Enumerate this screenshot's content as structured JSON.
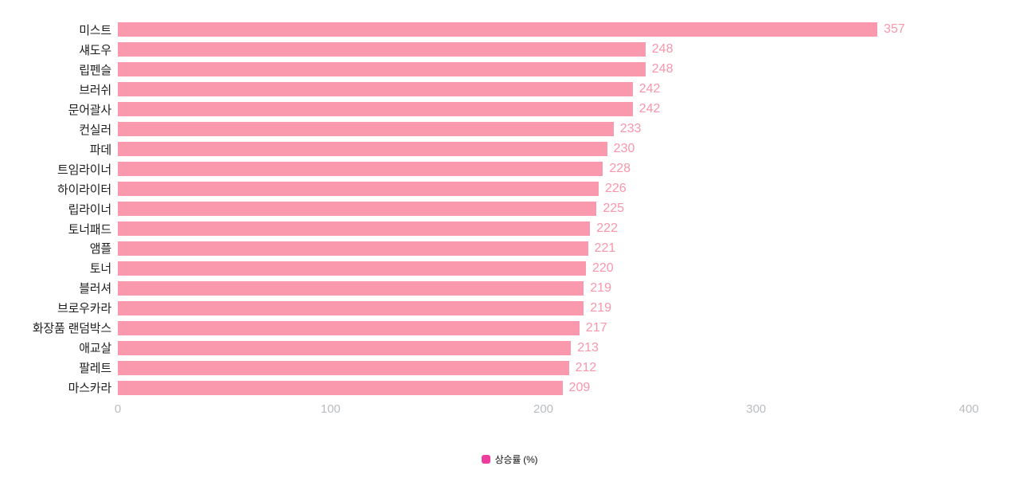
{
  "chart_data": {
    "type": "bar",
    "orientation": "horizontal",
    "title": "",
    "xlabel": "",
    "ylabel": "",
    "categories": [
      "미스트",
      "섀도우",
      "립펜슬",
      "브러쉬",
      "문어괄사",
      "컨실러",
      "파데",
      "트임라이너",
      "하이라이터",
      "립라이너",
      "토너패드",
      "앰플",
      "토너",
      "블러셔",
      "브로우카라",
      "화장품 랜덤박스",
      "애교살",
      "팔레트",
      "마스카라"
    ],
    "values": [
      357,
      248,
      248,
      242,
      242,
      233,
      230,
      228,
      226,
      225,
      222,
      221,
      220,
      219,
      219,
      217,
      213,
      212,
      209
    ],
    "series_name": "상승률 (%)",
    "xlim": [
      0,
      400
    ],
    "x_ticks": [
      0,
      100,
      200,
      300,
      400
    ],
    "grid": false,
    "legend_position": "bottom",
    "value_labels_shown": true,
    "bar_color": "#fa98ae",
    "value_label_color": "#fa96ac",
    "legend_marker_color": "#ee3d9d",
    "tick_label_color": "#b9bcc0",
    "category_label_color": "#1e1e1e",
    "background_color": "#ffffff"
  }
}
